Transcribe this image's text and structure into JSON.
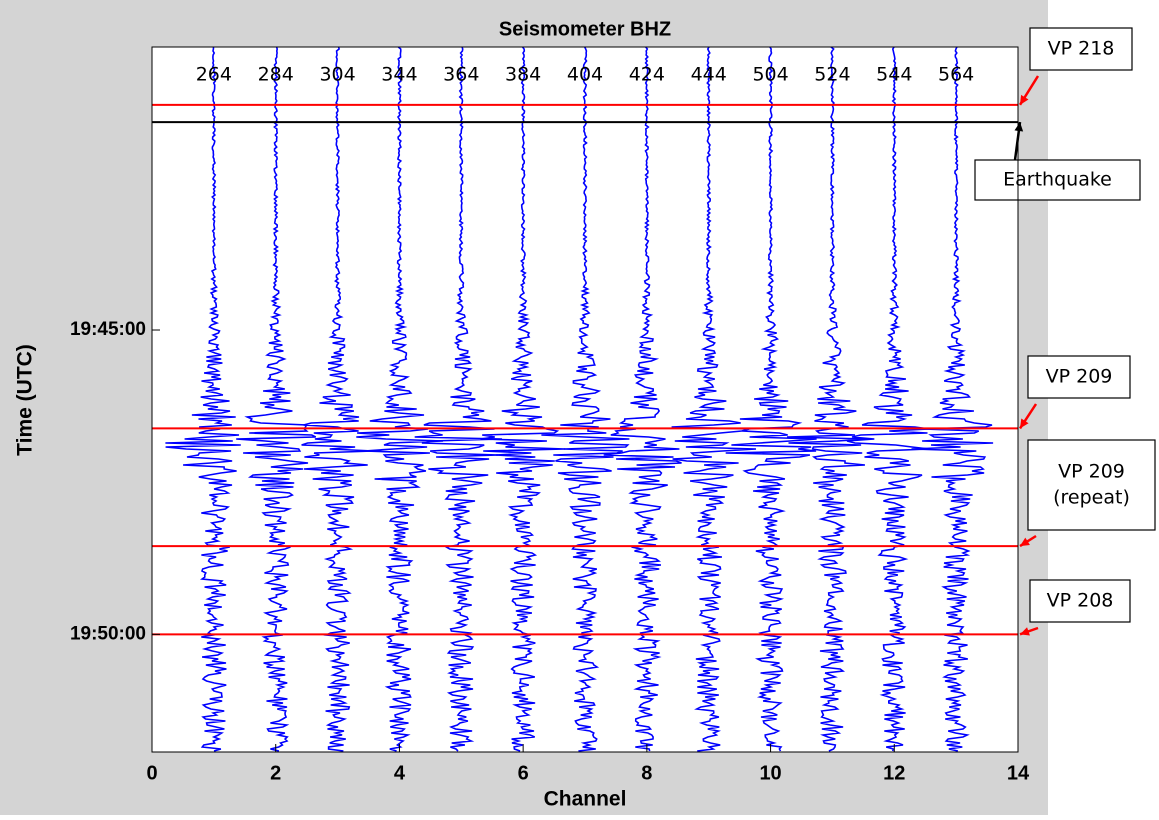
{
  "chart_data": {
    "type": "seismogram",
    "title": "Seismometer BHZ",
    "x_label": "Channel",
    "y_label": "Time (UTC)",
    "xlim": [
      0,
      14
    ],
    "xticks": [
      0,
      2,
      4,
      6,
      8,
      10,
      12,
      14
    ],
    "ylim": [
      70821,
      71516
    ],
    "y_inverted": true,
    "yticks": [
      {
        "value": 71100,
        "label": "19:45:00"
      },
      {
        "value": 71400,
        "label": "19:50:00"
      }
    ],
    "traces": {
      "x": [
        1,
        2,
        3,
        4,
        5,
        6,
        7,
        8,
        9,
        10,
        11,
        12,
        13
      ],
      "labels": [
        "264",
        "284",
        "304",
        "344",
        "364",
        "384",
        "404",
        "424",
        "444",
        "504",
        "524",
        "544",
        "564"
      ],
      "color": "#0000ff"
    },
    "events": [
      {
        "label": [
          "VP 218"
        ],
        "time": 70878,
        "color": "#ff0000"
      },
      {
        "label": [
          "Earthquake"
        ],
        "time": 70895,
        "color": "#000000"
      },
      {
        "label": [
          "VP 209"
        ],
        "time": 71197,
        "color": "#ff0000"
      },
      {
        "label": [
          "VP 209",
          "(repeat)"
        ],
        "time": 71313,
        "color": "#ff0000"
      },
      {
        "label": [
          "VP 208"
        ],
        "time": 71400,
        "color": "#ff0000"
      }
    ]
  }
}
